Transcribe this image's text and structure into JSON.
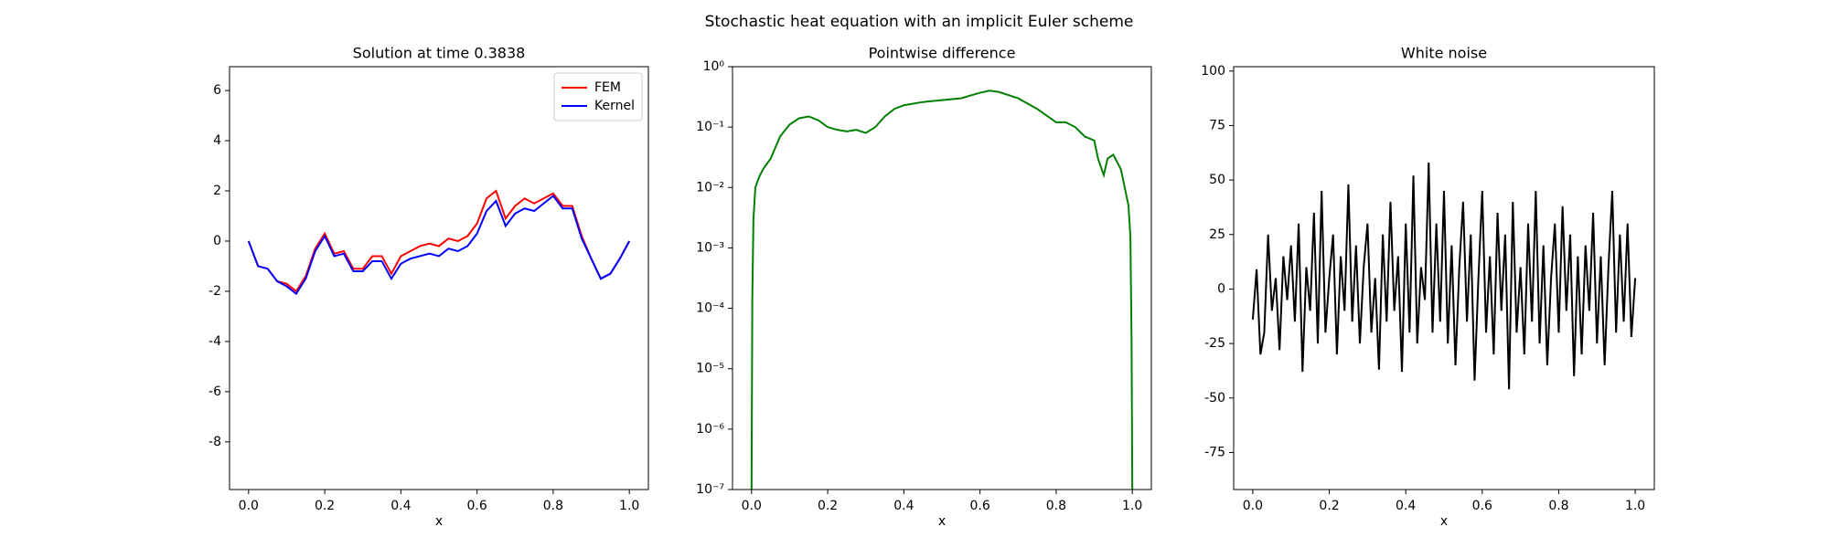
{
  "title": "Stochastic heat equation with an implicit Euler scheme",
  "chart_data": [
    {
      "type": "line",
      "title": "Solution at time 0.3838",
      "x_label": "x",
      "legend": "upper right",
      "xlim": [
        -0.05,
        1.05
      ],
      "ylim": [
        -9.9,
        6.95
      ],
      "xticks": [
        {
          "value": 0,
          "label": "0.0"
        },
        0.2,
        0.4,
        0.6,
        0.8,
        {
          "value": 1,
          "label": "1.0"
        }
      ],
      "yticks": [
        -8,
        -6,
        -4,
        -2,
        0,
        2,
        4,
        6
      ],
      "x": [
        0,
        0.025,
        0.05,
        0.075,
        0.1,
        0.125,
        0.15,
        0.175,
        0.2,
        0.225,
        0.25,
        0.275,
        0.3,
        0.325,
        0.35,
        0.375,
        0.4,
        0.425,
        0.45,
        0.475,
        0.5,
        0.525,
        0.55,
        0.575,
        0.6,
        0.625,
        0.65,
        0.675,
        0.7,
        0.725,
        0.75,
        0.775,
        0.8,
        0.825,
        0.85,
        0.875,
        0.9,
        0.925,
        0.95,
        0.975,
        1
      ],
      "series": [
        {
          "name": "FEM",
          "color": "#ff0000",
          "values": [
            0,
            -1.0,
            -1.1,
            -1.6,
            -1.7,
            -2.0,
            -1.4,
            -0.3,
            0.3,
            -0.5,
            -0.4,
            -1.1,
            -1.1,
            -0.6,
            -0.6,
            -1.3,
            -0.6,
            -0.4,
            -0.2,
            -0.1,
            -0.2,
            0.1,
            0,
            0.2,
            0.7,
            1.7,
            2.0,
            0.9,
            1.4,
            1.7,
            1.5,
            1.7,
            1.9,
            1.4,
            1.4,
            0.2,
            -0.7,
            -1.5,
            -1.3,
            -0.7,
            0
          ]
        },
        {
          "name": "Kernel",
          "color": "#0000ff",
          "values": [
            0,
            -1.0,
            -1.1,
            -1.6,
            -1.8,
            -2.1,
            -1.5,
            -0.4,
            0.2,
            -0.6,
            -0.5,
            -1.2,
            -1.2,
            -0.8,
            -0.8,
            -1.5,
            -0.9,
            -0.7,
            -0.6,
            -0.5,
            -0.6,
            -0.3,
            -0.4,
            -0.2,
            0.3,
            1.2,
            1.6,
            0.6,
            1.1,
            1.3,
            1.2,
            1.5,
            1.8,
            1.3,
            1.3,
            0.1,
            -0.7,
            -1.5,
            -1.3,
            -0.7,
            0
          ]
        }
      ]
    },
    {
      "type": "line",
      "title": "Pointwise difference",
      "x_label": "x",
      "yscale": "log",
      "xlim": [
        -0.05,
        1.05
      ],
      "ylim": [
        1e-07,
        1
      ],
      "xticks": [
        {
          "value": 0,
          "label": "0.0"
        },
        0.2,
        0.4,
        0.6,
        0.8,
        {
          "value": 1,
          "label": "1.0"
        }
      ],
      "yticks": [
        {
          "value": 1e-07,
          "label": "10⁻⁷"
        },
        {
          "value": 1e-06,
          "label": "10⁻⁶"
        },
        {
          "value": 1e-05,
          "label": "10⁻⁵"
        },
        {
          "value": 0.0001,
          "label": "10⁻⁴"
        },
        {
          "value": 0.001,
          "label": "10⁻³"
        },
        {
          "value": 0.01,
          "label": "10⁻²"
        },
        {
          "value": 0.1,
          "label": "10⁻¹"
        },
        {
          "value": 1,
          "label": "10⁰"
        }
      ],
      "x": [
        0,
        0.002,
        0.005,
        0.01,
        0.02,
        0.03,
        0.05,
        0.075,
        0.1,
        0.125,
        0.15,
        0.175,
        0.2,
        0.225,
        0.25,
        0.275,
        0.3,
        0.325,
        0.35,
        0.375,
        0.4,
        0.45,
        0.5,
        0.55,
        0.6,
        0.625,
        0.65,
        0.7,
        0.75,
        0.8,
        0.825,
        0.85,
        0.875,
        0.9,
        0.91,
        0.925,
        0.935,
        0.95,
        0.97,
        0.99,
        0.995,
        0.998,
        1
      ],
      "series": [
        {
          "color": "#008000",
          "values": [
            1e-07,
            0.00015,
            0.003,
            0.01,
            0.015,
            0.02,
            0.03,
            0.07,
            0.11,
            0.14,
            0.15,
            0.13,
            0.1,
            0.09,
            0.085,
            0.09,
            0.08,
            0.1,
            0.15,
            0.2,
            0.23,
            0.26,
            0.28,
            0.3,
            0.37,
            0.4,
            0.38,
            0.3,
            0.2,
            0.12,
            0.12,
            0.1,
            0.07,
            0.06,
            0.03,
            0.016,
            0.03,
            0.035,
            0.02,
            0.005,
            0.0015,
            3e-05,
            1e-07
          ]
        }
      ]
    },
    {
      "type": "line",
      "title": "White noise",
      "x_label": "x",
      "xlim": [
        -0.05,
        1.05
      ],
      "ylim": [
        -92,
        102
      ],
      "xticks": [
        {
          "value": 0,
          "label": "0.0"
        },
        0.2,
        0.4,
        0.6,
        0.8,
        {
          "value": 1,
          "label": "1.0"
        }
      ],
      "yticks": [
        -75,
        -50,
        -25,
        0,
        25,
        50,
        75,
        100
      ],
      "x": [
        0,
        0.01,
        0.02,
        0.03,
        0.04,
        0.05,
        0.06,
        0.07,
        0.08,
        0.09,
        0.1,
        0.11,
        0.12,
        0.13,
        0.14,
        0.15,
        0.16,
        0.17,
        0.18,
        0.19,
        0.2,
        0.21,
        0.22,
        0.23,
        0.24,
        0.25,
        0.26,
        0.27,
        0.28,
        0.29,
        0.3,
        0.31,
        0.32,
        0.33,
        0.34,
        0.35,
        0.36,
        0.37,
        0.38,
        0.39,
        0.4,
        0.41,
        0.42,
        0.43,
        0.44,
        0.45,
        0.46,
        0.47,
        0.48,
        0.49,
        0.5,
        0.51,
        0.52,
        0.53,
        0.54,
        0.55,
        0.56,
        0.57,
        0.58,
        0.59,
        0.6,
        0.61,
        0.62,
        0.63,
        0.64,
        0.65,
        0.66,
        0.67,
        0.68,
        0.69,
        0.7,
        0.71,
        0.72,
        0.73,
        0.74,
        0.75,
        0.76,
        0.77,
        0.78,
        0.79,
        0.8,
        0.81,
        0.82,
        0.83,
        0.84,
        0.85,
        0.86,
        0.87,
        0.88,
        0.89,
        0.9,
        0.91,
        0.92,
        0.93,
        0.94,
        0.95,
        0.96,
        0.97,
        0.98,
        0.99,
        1
      ],
      "series": [
        {
          "color": "#000000",
          "values": [
            -14,
            9,
            -30,
            -20,
            25,
            -10,
            5,
            -28,
            15,
            -5,
            20,
            -15,
            30,
            -38,
            10,
            -10,
            35,
            -25,
            45,
            -20,
            5,
            25,
            -30,
            15,
            -10,
            48,
            -15,
            20,
            -25,
            10,
            30,
            -20,
            5,
            -37,
            25,
            -15,
            40,
            -10,
            15,
            -38,
            30,
            -20,
            52,
            -25,
            10,
            -5,
            58,
            -20,
            30,
            -15,
            45,
            -25,
            20,
            -35,
            10,
            40,
            -15,
            25,
            -42,
            5,
            45,
            -20,
            15,
            -30,
            35,
            -10,
            25,
            -46,
            40,
            -20,
            10,
            -30,
            30,
            -15,
            45,
            -25,
            20,
            -35,
            5,
            30,
            -20,
            38,
            -10,
            25,
            -40,
            15,
            -30,
            20,
            -10,
            35,
            -25,
            15,
            -35,
            10,
            45,
            -20,
            25,
            -15,
            30,
            -22,
            5
          ]
        }
      ]
    }
  ]
}
